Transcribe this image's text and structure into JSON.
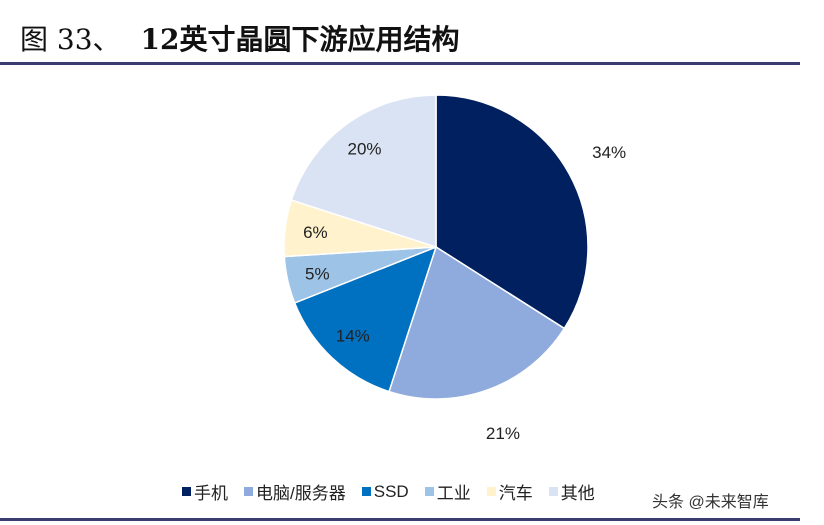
{
  "figure": {
    "number": "图 33、",
    "title": "12英寸晶圆下游应用结构"
  },
  "watermark": "头条 @未来智库",
  "chart_data": {
    "type": "pie",
    "title": "12英寸晶圆下游应用结构",
    "categories": [
      "手机",
      "电脑/服务器",
      "SSD",
      "工业",
      "汽车",
      "其他"
    ],
    "values": [
      34,
      21,
      14,
      5,
      6,
      20
    ],
    "labels": [
      "34%",
      "21%",
      "14%",
      "5%",
      "6%",
      "20%"
    ],
    "colors": [
      "#002060",
      "#8faadc",
      "#0070c0",
      "#9dc3e6",
      "#fff2cc",
      "#dae3f3"
    ],
    "start": "top, clockwise",
    "legend_position": "bottom"
  }
}
